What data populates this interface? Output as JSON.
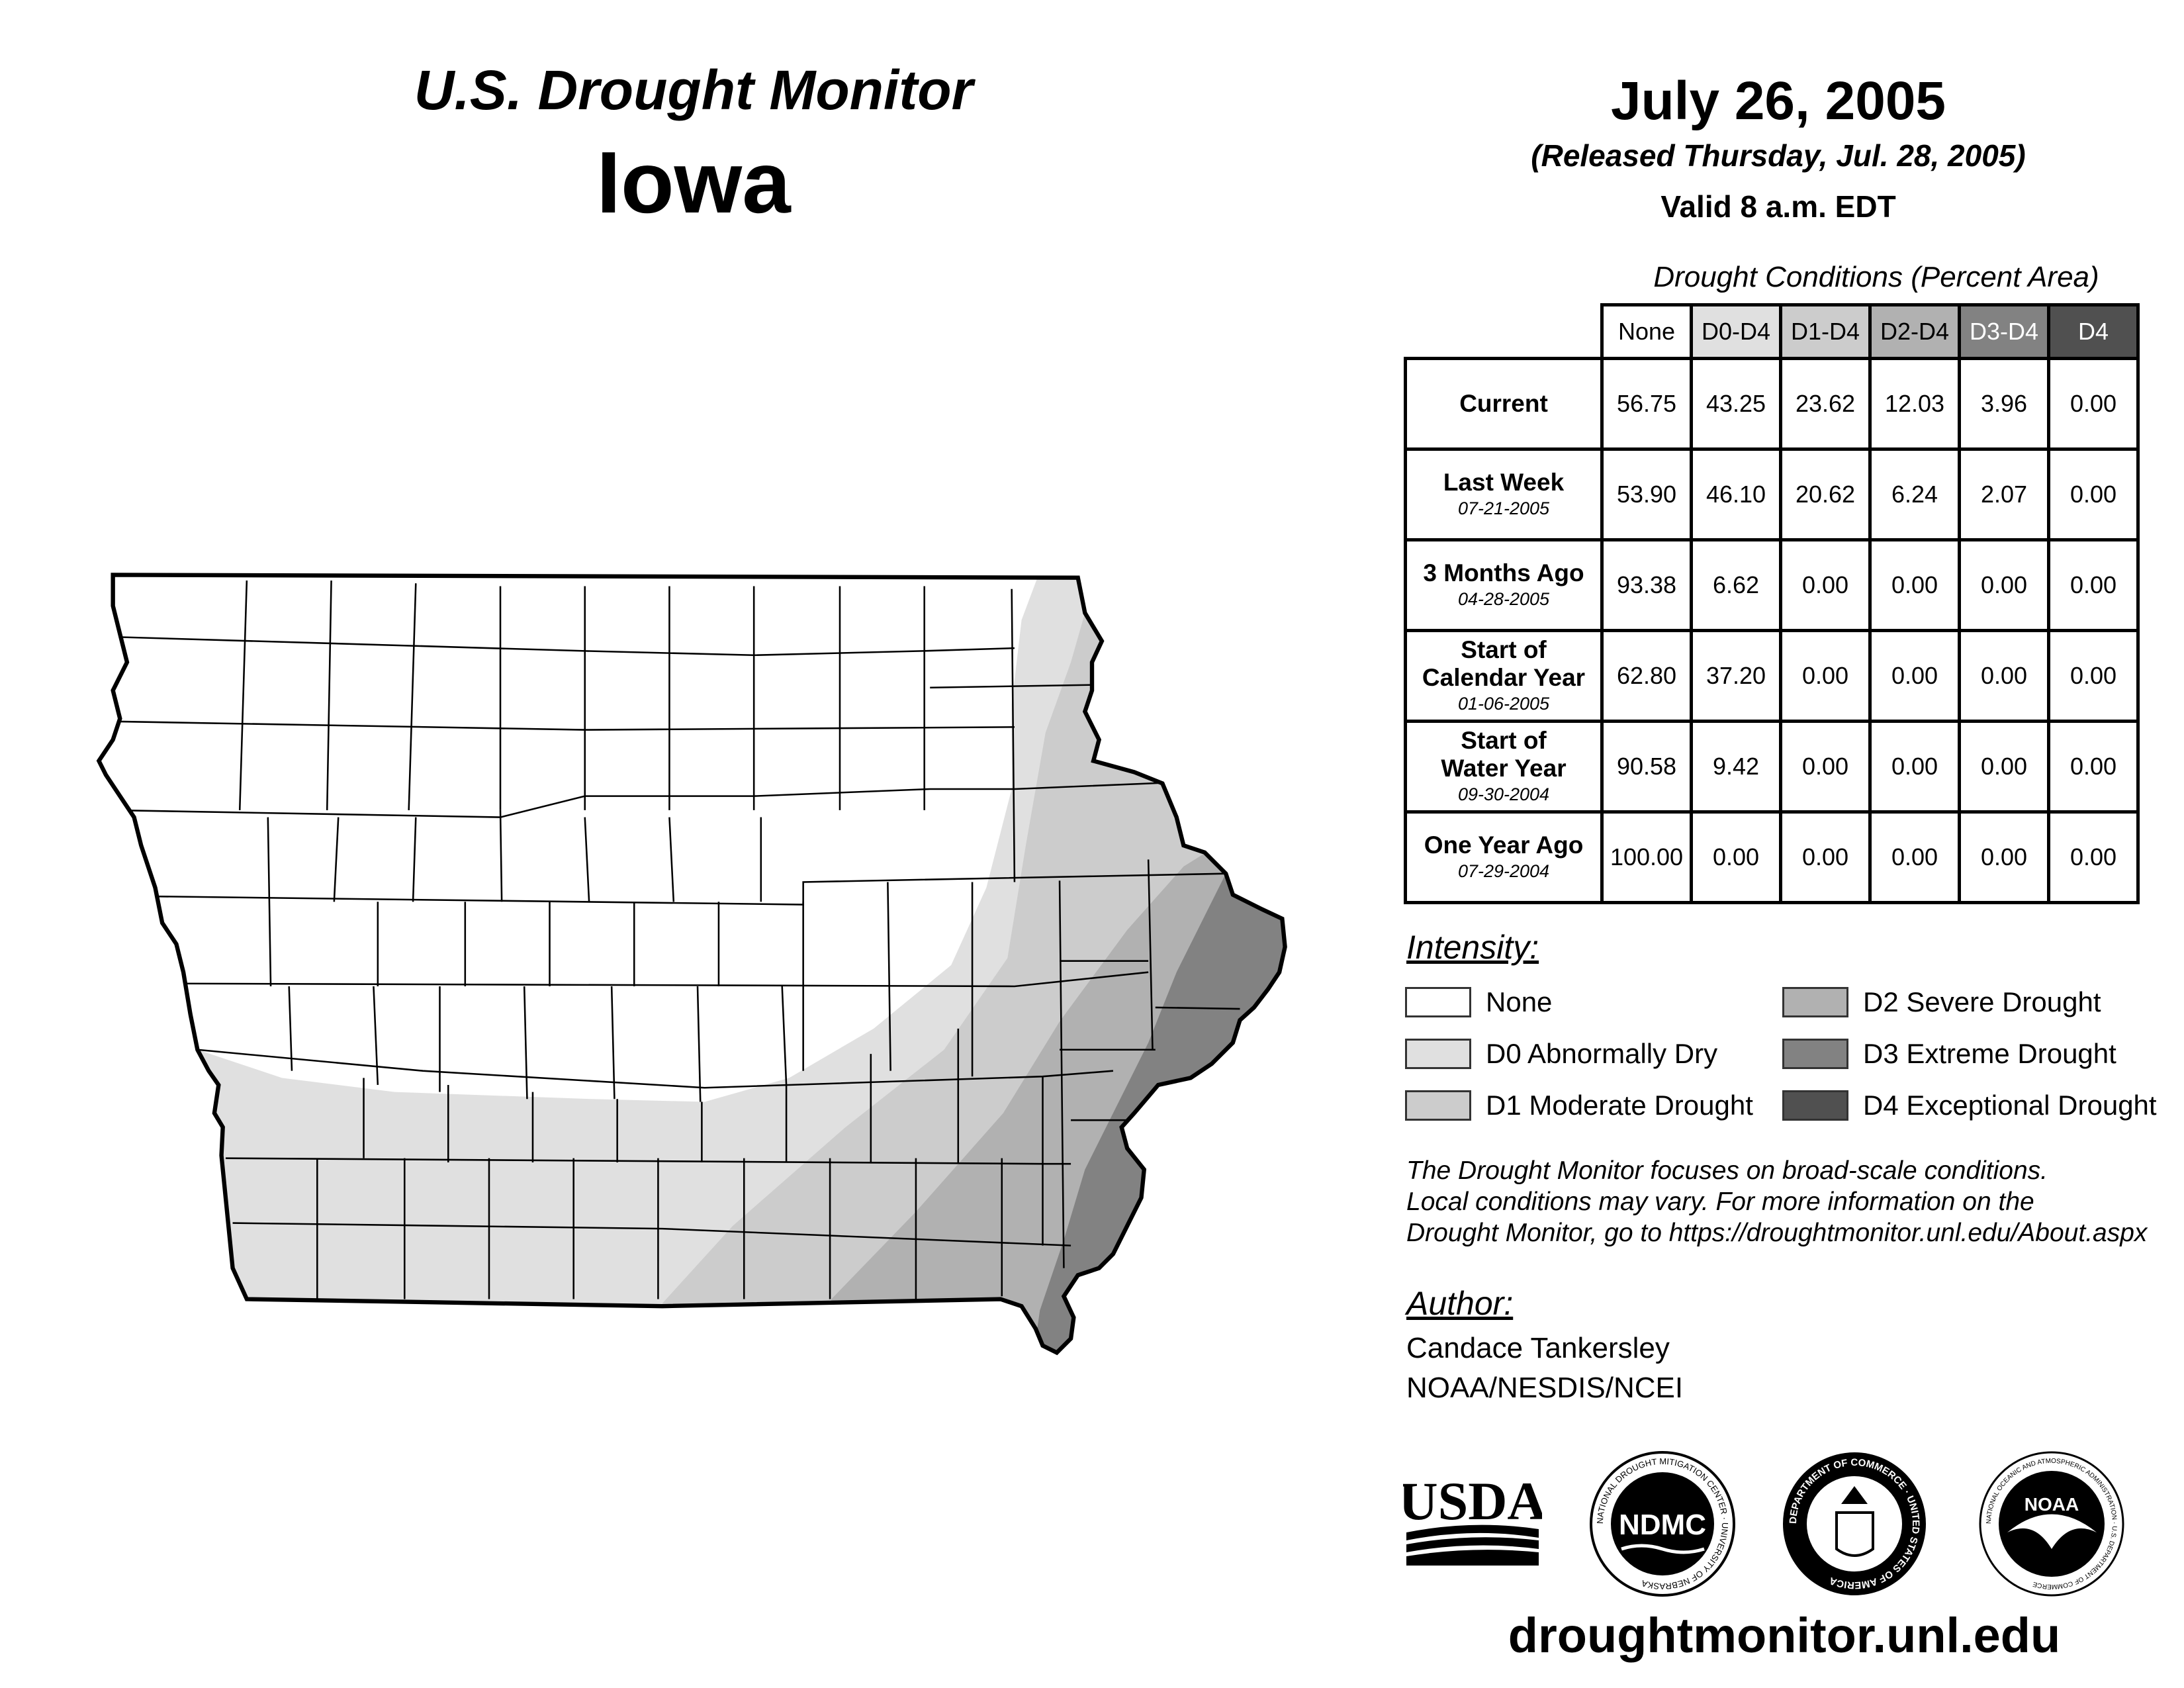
{
  "header": {
    "title": "U.S. Drought Monitor",
    "state": "Iowa",
    "date": "July 26, 2005",
    "released": "(Released Thursday, Jul. 28, 2005)",
    "valid": "Valid 8 a.m. EDT"
  },
  "colors": {
    "none": "#ffffff",
    "d0": "#e0e0e0",
    "d1": "#cccccc",
    "d2": "#b1b1b1",
    "d3": "#828282",
    "d4": "#505050"
  },
  "chart_data": {
    "type": "table",
    "title": "Drought Conditions (Percent Area)",
    "columns": [
      "None",
      "D0-D4",
      "D1-D4",
      "D2-D4",
      "D3-D4",
      "D4"
    ],
    "rows": [
      {
        "label": [
          "Current"
        ],
        "date": "",
        "values": [
          "56.75",
          "43.25",
          "23.62",
          "12.03",
          "3.96",
          "0.00"
        ]
      },
      {
        "label": [
          "Last Week"
        ],
        "date": "07-21-2005",
        "values": [
          "53.90",
          "46.10",
          "20.62",
          "6.24",
          "2.07",
          "0.00"
        ]
      },
      {
        "label": [
          "3 Months Ago"
        ],
        "date": "04-28-2005",
        "values": [
          "93.38",
          "6.62",
          "0.00",
          "0.00",
          "0.00",
          "0.00"
        ]
      },
      {
        "label": [
          "Start of",
          "Calendar Year"
        ],
        "date": "01-06-2005",
        "values": [
          "62.80",
          "37.20",
          "0.00",
          "0.00",
          "0.00",
          "0.00"
        ]
      },
      {
        "label": [
          "Start of",
          "Water Year"
        ],
        "date": "09-30-2004",
        "values": [
          "90.58",
          "9.42",
          "0.00",
          "0.00",
          "0.00",
          "0.00"
        ]
      },
      {
        "label": [
          "One Year Ago"
        ],
        "date": "07-29-2004",
        "values": [
          "100.00",
          "0.00",
          "0.00",
          "0.00",
          "0.00",
          "0.00"
        ]
      }
    ]
  },
  "legend": {
    "title": "Intensity:",
    "items": [
      {
        "label": "None",
        "color": "#ffffff"
      },
      {
        "label": "D0 Abnormally Dry",
        "color": "#e0e0e0"
      },
      {
        "label": "D1 Moderate Drought",
        "color": "#cccccc"
      },
      {
        "label": "D2 Severe Drought",
        "color": "#b1b1b1"
      },
      {
        "label": "D3 Extreme Drought",
        "color": "#828282"
      },
      {
        "label": "D4 Exceptional Drought",
        "color": "#505050"
      }
    ]
  },
  "note": [
    "The Drought Monitor focuses on broad-scale conditions.",
    "Local conditions may vary. For more information on the",
    "Drought Monitor, go to https://droughtmonitor.unl.edu/About.aspx"
  ],
  "author": {
    "title": "Author:",
    "name": "Candace Tankersley",
    "org": "NOAA/NESDIS/NCEI"
  },
  "logos": {
    "usda": "USDA",
    "ndmc": "NDMC",
    "ndmc_ring": "NATIONAL DROUGHT MITIGATION CENTER · UNIVERSITY OF NEBRASKA",
    "doc_ring": "DEPARTMENT OF COMMERCE · UNITED STATES OF AMERICA",
    "noaa": "NOAA",
    "noaa_ring": "NATIONAL OCEANIC AND ATMOSPHERIC ADMINISTRATION · U.S. DEPARTMENT OF COMMERCE"
  },
  "website": "droughtmonitor.unl.edu"
}
